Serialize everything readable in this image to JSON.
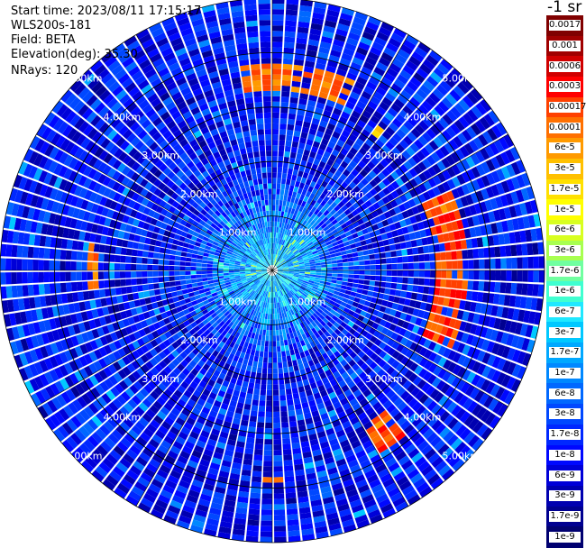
{
  "header": {
    "start_time": "Start time: 2023/08/11 17:15:17",
    "device": "WLS200s-181",
    "field": "Field: BETA",
    "elevation": "Elevation(deg): 35.30",
    "nrays": "NRays: 120"
  },
  "colorbar": {
    "units": "-1 sr",
    "labels": [
      "0.0017",
      "0.001",
      "0.0006",
      "0.0003",
      "0.00017",
      "0.0001",
      "6e-5",
      "3e-5",
      "1.7e-5",
      "1e-5",
      "6e-6",
      "3e-6",
      "1.7e-6",
      "1e-6",
      "6e-7",
      "3e-7",
      "1.7e-7",
      "1e-7",
      "6e-8",
      "3e-8",
      "1.7e-8",
      "1e-8",
      "6e-9",
      "3e-9",
      "1.7e-9",
      "1e-9"
    ],
    "colors": [
      "#800000",
      "#a00000",
      "#d00000",
      "#ff0000",
      "#ff4000",
      "#ff7000",
      "#ff9a00",
      "#ffc000",
      "#ffe000",
      "#ffff00",
      "#d8ff20",
      "#a8ff50",
      "#70ffa0",
      "#40ffd0",
      "#20e8ff",
      "#00c8ff",
      "#00a8ff",
      "#0088ff",
      "#0068ff",
      "#0048ff",
      "#0028ff",
      "#0008ff",
      "#0000d8",
      "#0000b0",
      "#000090",
      "#000070"
    ]
  },
  "chart_data": {
    "type": "heatmap",
    "projection": "polar-ppi",
    "field": "BETA",
    "nrays": 120,
    "range_rings_km": [
      1,
      2,
      3,
      4,
      5
    ],
    "range_ring_labels": [
      "1.00km",
      "2.00km",
      "3.00km",
      "4.00km",
      "5.00km"
    ],
    "radial_lines_deg": [
      0,
      30,
      60,
      90,
      120,
      150,
      180,
      210,
      240,
      270,
      300,
      330
    ],
    "max_range_km": 5.0,
    "colorscale": "log",
    "vmin": 1e-09,
    "vmax": 0.0017,
    "background_level": 1e-08,
    "high_backscatter_features": [
      {
        "azimuth_deg": [
          350,
          25
        ],
        "range_km": [
          3.3,
          3.8
        ],
        "value": 0.0001
      },
      {
        "azimuth_deg": [
          65,
          115
        ],
        "range_km": [
          3.0,
          3.6
        ],
        "value": 0.00017
      },
      {
        "azimuth_deg": [
          140,
          150
        ],
        "range_km": [
          3.3,
          3.9
        ],
        "value": 0.00017
      },
      {
        "azimuth_deg": [
          265,
          280
        ],
        "range_km": [
          3.2,
          3.4
        ],
        "value": 0.0001
      },
      {
        "azimuth_deg": [
          178,
          182
        ],
        "range_km": [
          3.8,
          3.9
        ],
        "value": 0.0001
      },
      {
        "azimuth_deg": [
          36,
          40
        ],
        "range_km": [
          3.1,
          3.3
        ],
        "value": 3e-05
      }
    ]
  }
}
